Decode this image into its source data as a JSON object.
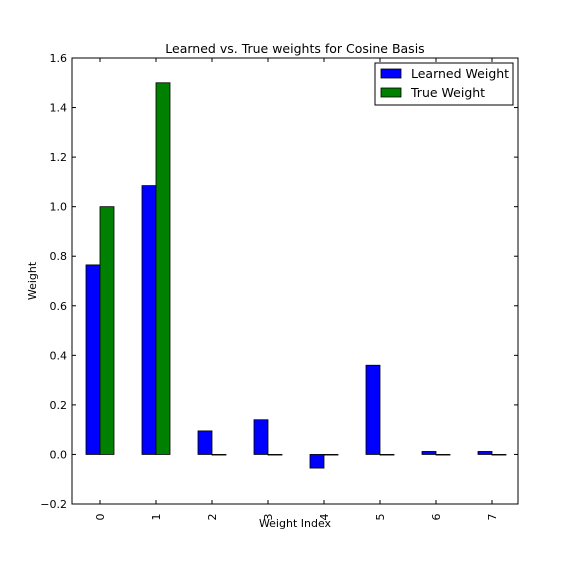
{
  "chart_data": {
    "type": "bar",
    "title": "Learned vs. True weights for Cosine Basis",
    "xlabel": "Weight Index",
    "ylabel": "Weight",
    "categories": [
      "0",
      "1",
      "2",
      "3",
      "4",
      "5",
      "6",
      "7"
    ],
    "series": [
      {
        "name": "Learned Weight",
        "color": "#0000ff",
        "values": [
          0.765,
          1.085,
          0.095,
          0.14,
          -0.055,
          0.36,
          0.012,
          0.012
        ]
      },
      {
        "name": "True Weight",
        "color": "#008000",
        "values": [
          1.0,
          1.5,
          0.0,
          0.0,
          0.0,
          0.0,
          0.0,
          0.0
        ]
      }
    ],
    "ylim": [
      -0.2,
      1.6
    ],
    "yticks": [
      "−0.2",
      "0.0",
      "0.2",
      "0.4",
      "0.6",
      "0.8",
      "1.0",
      "1.2",
      "1.4",
      "1.6"
    ],
    "grid": false,
    "legend": "top-right"
  }
}
